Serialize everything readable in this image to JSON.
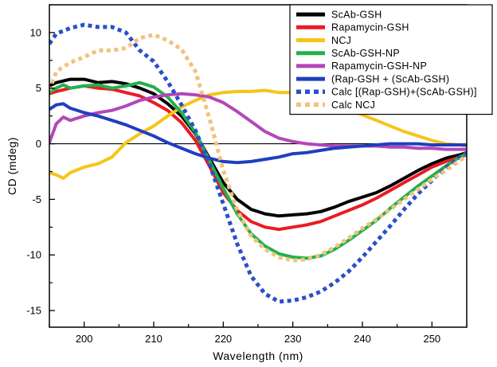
{
  "chart_data": {
    "type": "line",
    "xlabel": "Wavelength (nm)",
    "ylabel": "CD (mdeg)",
    "xlim": [
      195,
      255
    ],
    "ylim": [
      -16.5,
      12.5
    ],
    "x_ticks": [
      200,
      210,
      220,
      230,
      240,
      250
    ],
    "y_ticks": [
      10,
      5,
      0,
      -5,
      -10,
      -15
    ],
    "x_tick_labels": [
      "200",
      "210",
      "220",
      "230",
      "240",
      "250"
    ],
    "y_tick_labels": [
      "10",
      "5",
      "0",
      "-5",
      "-10",
      "-15"
    ],
    "zero_line": true,
    "grid": false,
    "legend_position": "top-right",
    "series": [
      {
        "name": "ScAb-GSH",
        "color": "#000000",
        "style": "solid",
        "x": [
          195,
          196,
          198,
          200,
          202,
          204,
          206,
          208,
          210,
          212,
          214,
          216,
          218,
          220,
          222,
          224,
          226,
          228,
          230,
          232,
          234,
          236,
          238,
          240,
          242,
          244,
          246,
          248,
          250,
          252,
          254,
          255
        ],
        "y": [
          5.2,
          5.5,
          5.8,
          5.8,
          5.5,
          5.6,
          5.4,
          5.0,
          4.5,
          3.6,
          2.5,
          0.9,
          -1.3,
          -3.5,
          -5.0,
          -5.9,
          -6.3,
          -6.5,
          -6.4,
          -6.3,
          -6.1,
          -5.7,
          -5.2,
          -4.8,
          -4.4,
          -3.8,
          -3.1,
          -2.4,
          -1.8,
          -1.3,
          -1.0,
          -0.8
        ]
      },
      {
        "name": "Rapamycin-GSH",
        "color": "#ea1c24",
        "style": "solid",
        "x": [
          195,
          196,
          198,
          200,
          202,
          204,
          206,
          208,
          210,
          212,
          214,
          216,
          218,
          220,
          222,
          224,
          226,
          228,
          230,
          232,
          234,
          236,
          238,
          240,
          242,
          244,
          246,
          248,
          250,
          252,
          254,
          255
        ],
        "y": [
          4.5,
          4.7,
          5.0,
          5.2,
          5.0,
          4.9,
          4.6,
          4.3,
          3.7,
          3.0,
          1.9,
          0.3,
          -2.0,
          -4.4,
          -6.0,
          -7.0,
          -7.5,
          -7.7,
          -7.5,
          -7.3,
          -7.0,
          -6.5,
          -6.0,
          -5.5,
          -4.9,
          -4.2,
          -3.5,
          -2.8,
          -2.1,
          -1.6,
          -1.2,
          -1.0
        ]
      },
      {
        "name": "NCJ",
        "color": "#f5c518",
        "style": "solid",
        "x": [
          195,
          196,
          197,
          198,
          200,
          202,
          204,
          206,
          208,
          210,
          212,
          214,
          216,
          218,
          220,
          222,
          224,
          226,
          228,
          230,
          232,
          234,
          236,
          238,
          240,
          242,
          244,
          246,
          248,
          250,
          252,
          254,
          255
        ],
        "y": [
          -2.6,
          -2.8,
          -3.1,
          -2.6,
          -2.1,
          -1.8,
          -1.2,
          0.1,
          0.9,
          1.6,
          2.5,
          3.3,
          3.9,
          4.4,
          4.6,
          4.7,
          4.7,
          4.8,
          4.6,
          4.6,
          4.3,
          4.0,
          3.6,
          3.1,
          2.6,
          2.1,
          1.6,
          1.1,
          0.7,
          0.3,
          0.0,
          -0.1,
          -0.2
        ]
      },
      {
        "name": "ScAb-GSH-NP",
        "color": "#22b14c",
        "style": "solid",
        "x": [
          195,
          196,
          197,
          198,
          200,
          202,
          204,
          206,
          208,
          210,
          212,
          214,
          216,
          218,
          220,
          222,
          224,
          226,
          228,
          230,
          232,
          234,
          236,
          238,
          240,
          242,
          244,
          246,
          248,
          250,
          252,
          254,
          255
        ],
        "y": [
          4.6,
          5.0,
          5.3,
          5.0,
          5.2,
          5.3,
          5.0,
          5.2,
          5.5,
          5.1,
          4.2,
          2.8,
          1.0,
          -1.5,
          -4.0,
          -6.3,
          -8.1,
          -9.2,
          -9.9,
          -10.2,
          -10.3,
          -10.1,
          -9.5,
          -8.7,
          -7.8,
          -6.9,
          -5.8,
          -4.8,
          -3.8,
          -2.9,
          -2.0,
          -1.2,
          -0.9
        ]
      },
      {
        "name": "Rapamycin-GSH-NP",
        "color": "#b347b8",
        "style": "solid",
        "x": [
          195,
          196,
          197,
          198,
          200,
          202,
          204,
          206,
          208,
          210,
          212,
          214,
          216,
          218,
          220,
          222,
          224,
          226,
          228,
          230,
          232,
          234,
          236,
          238,
          240,
          242,
          244,
          246,
          248,
          250,
          252,
          254,
          255
        ],
        "y": [
          0.1,
          1.8,
          2.4,
          2.1,
          2.5,
          2.8,
          3.0,
          3.4,
          3.9,
          4.2,
          4.4,
          4.5,
          4.4,
          4.2,
          3.7,
          2.9,
          2.0,
          1.1,
          0.5,
          0.2,
          0.0,
          -0.1,
          -0.2,
          -0.2,
          -0.2,
          -0.2,
          -0.3,
          -0.3,
          -0.4,
          -0.4,
          -0.5,
          -0.5,
          -0.5
        ]
      },
      {
        "name": "(Rap-GSH + (ScAb-GSH)",
        "color": "#1f3fbf",
        "style": "solid",
        "x": [
          195,
          196,
          197,
          198,
          200,
          202,
          204,
          206,
          208,
          210,
          212,
          214,
          216,
          218,
          220,
          222,
          224,
          226,
          228,
          230,
          232,
          234,
          236,
          238,
          240,
          242,
          244,
          246,
          248,
          250,
          252,
          254,
          255
        ],
        "y": [
          3.1,
          3.5,
          3.6,
          3.2,
          2.8,
          2.5,
          2.1,
          1.7,
          1.2,
          0.7,
          0.1,
          -0.4,
          -0.9,
          -1.3,
          -1.6,
          -1.7,
          -1.6,
          -1.4,
          -1.2,
          -0.9,
          -0.8,
          -0.6,
          -0.4,
          -0.3,
          -0.2,
          -0.1,
          0.0,
          0.0,
          0.0,
          -0.1,
          -0.1,
          -0.1,
          -0.1
        ]
      },
      {
        "name": "Calc  [(Rap-GSH)+(ScAb-GSH)]",
        "color": "#2a4fc9",
        "style": "dotted",
        "x": [
          195,
          196,
          198,
          200,
          202,
          204,
          206,
          208,
          210,
          212,
          214,
          216,
          218,
          220,
          222,
          224,
          226,
          228,
          230,
          232,
          234,
          236,
          238,
          240,
          242,
          244,
          246,
          248,
          250,
          252,
          254,
          255
        ],
        "y": [
          9.0,
          9.9,
          10.4,
          10.7,
          10.5,
          10.5,
          10.0,
          8.4,
          7.4,
          5.6,
          3.5,
          1.2,
          -1.8,
          -5.4,
          -9.0,
          -11.9,
          -13.5,
          -14.2,
          -14.1,
          -13.8,
          -13.3,
          -12.5,
          -11.5,
          -10.2,
          -8.8,
          -7.4,
          -5.9,
          -4.5,
          -3.3,
          -2.2,
          -1.2,
          -0.8
        ]
      },
      {
        "name": "Calc NCJ",
        "color": "#f2c27c",
        "style": "dotted",
        "x": [
          195,
          196,
          198,
          200,
          202,
          204,
          206,
          208,
          210,
          212,
          214,
          216,
          218,
          220,
          222,
          224,
          226,
          228,
          230,
          232,
          234,
          236,
          238,
          240,
          242,
          244,
          246,
          248,
          250,
          252,
          254,
          255
        ],
        "y": [
          4.8,
          6.5,
          7.3,
          7.8,
          8.4,
          8.4,
          8.6,
          9.5,
          9.8,
          9.3,
          8.5,
          6.5,
          2.3,
          -2.4,
          -6.0,
          -8.3,
          -9.5,
          -10.2,
          -10.5,
          -10.4,
          -10.0,
          -9.3,
          -8.5,
          -7.6,
          -6.8,
          -5.9,
          -5.0,
          -4.1,
          -3.2,
          -2.4,
          -1.5,
          -1.1
        ]
      }
    ]
  }
}
